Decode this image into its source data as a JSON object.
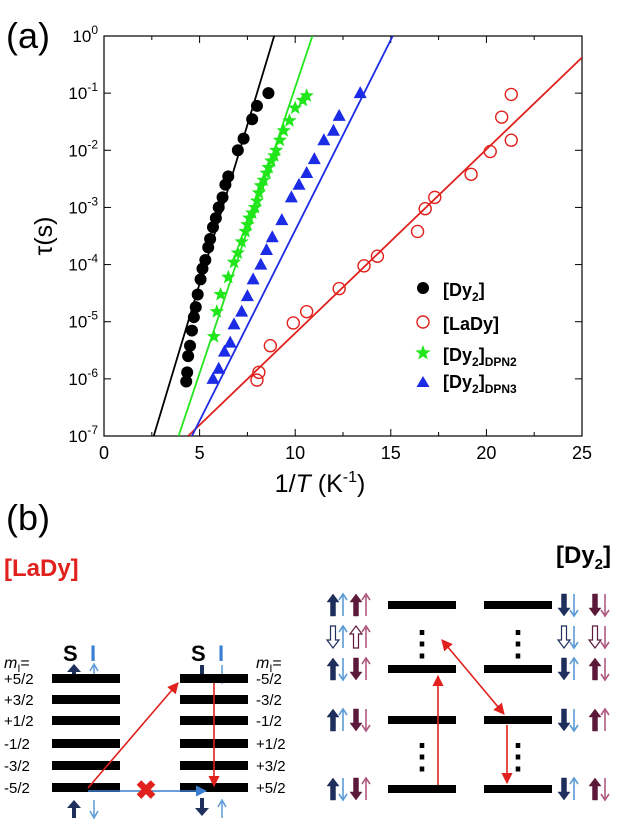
{
  "panel_a_label": "(a)",
  "panel_b_label": "(b)",
  "chart_data": {
    "type": "scatter",
    "xlabel_prefix": "1/",
    "xlabel_var": "T",
    "xlabel_unit": " (K",
    "xlabel_exp": "-1",
    "xlabel_close": ")",
    "ylabel": "τ(s)",
    "xlim": [
      0,
      25
    ],
    "ylim": [
      1e-07,
      1
    ],
    "yscale": "log",
    "x_ticks": [
      "0",
      "5",
      "10",
      "15",
      "20",
      "25"
    ],
    "y_ticks": [
      {
        "base": "10",
        "exp": "0"
      },
      {
        "base": "10",
        "exp": "-1"
      },
      {
        "base": "10",
        "exp": "-2"
      },
      {
        "base": "10",
        "exp": "-3"
      },
      {
        "base": "10",
        "exp": "-4"
      },
      {
        "base": "10",
        "exp": "-5"
      },
      {
        "base": "10",
        "exp": "-6"
      },
      {
        "base": "10",
        "exp": "-7"
      }
    ],
    "legend_position": "bottom-right",
    "series": [
      {
        "name": "[Dy2]",
        "legend_main": "[Dy",
        "legend_sub": "2",
        "legend_end": "]",
        "marker": "filled-circle",
        "color": "#000000",
        "points": [
          [
            4.3,
            9e-07
          ],
          [
            4.35,
            1.3e-06
          ],
          [
            4.4,
            2.5e-06
          ],
          [
            4.5,
            3.8e-06
          ],
          [
            4.6,
            7e-06
          ],
          [
            4.7,
            1.2e-05
          ],
          [
            4.8,
            1.8e-05
          ],
          [
            4.9,
            3e-05
          ],
          [
            5.05,
            5.5e-05
          ],
          [
            5.15,
            8.5e-05
          ],
          [
            5.3,
            0.00012
          ],
          [
            5.45,
            0.0002
          ],
          [
            5.55,
            0.00028
          ],
          [
            5.7,
            0.00045
          ],
          [
            5.85,
            0.00065
          ],
          [
            6.0,
            0.001
          ],
          [
            6.2,
            0.0015
          ],
          [
            6.35,
            0.0025
          ],
          [
            6.5,
            0.0035
          ],
          [
            7.0,
            0.01
          ],
          [
            7.3,
            0.016
          ],
          [
            7.75,
            0.035
          ],
          [
            8.0,
            0.06
          ],
          [
            8.6,
            0.1
          ]
        ],
        "fit": [
          [
            2.6,
            1e-07
          ],
          [
            8.9,
            1
          ]
        ]
      },
      {
        "name": "[LaDy]",
        "legend_main": "[LaDy]",
        "legend_sub": "",
        "legend_end": "",
        "marker": "open-circle",
        "color": "#e0211d",
        "points": [
          [
            8.0,
            9.5e-07
          ],
          [
            8.1,
            1.3e-06
          ],
          [
            8.7,
            3.8e-06
          ],
          [
            9.9,
            9.5e-06
          ],
          [
            10.6,
            1.5e-05
          ],
          [
            12.3,
            3.8e-05
          ],
          [
            13.6,
            9.5e-05
          ],
          [
            14.3,
            0.00014
          ],
          [
            16.4,
            0.00038
          ],
          [
            16.8,
            0.00095
          ],
          [
            17.3,
            0.0015
          ],
          [
            19.2,
            0.0038
          ],
          [
            20.2,
            0.0095
          ],
          [
            20.8,
            0.038
          ],
          [
            21.3,
            0.015
          ],
          [
            21.3,
            0.095
          ]
        ],
        "fit": [
          [
            4.4,
            1e-07
          ],
          [
            25,
            0.42
          ]
        ]
      },
      {
        "name": "[Dy2]DPN2",
        "legend_main": "[Dy",
        "legend_sub": "2",
        "legend_end": "]",
        "legend_sub2": "DPN2",
        "marker": "star",
        "color": "#21e61c",
        "points": [
          [
            5.75,
            5.5e-06
          ],
          [
            5.9,
            1.5e-05
          ],
          [
            6.1,
            3e-05
          ],
          [
            6.5,
            6e-05
          ],
          [
            6.8,
            0.00011
          ],
          [
            7.0,
            0.00016
          ],
          [
            7.2,
            0.00025
          ],
          [
            7.4,
            0.00038
          ],
          [
            7.5,
            0.0005
          ],
          [
            7.6,
            0.00065
          ],
          [
            7.75,
            0.0008
          ],
          [
            7.9,
            0.001
          ],
          [
            8.0,
            0.0013
          ],
          [
            8.1,
            0.0018
          ],
          [
            8.2,
            0.0024
          ],
          [
            8.35,
            0.003
          ],
          [
            8.5,
            0.004
          ],
          [
            8.6,
            0.005
          ],
          [
            8.75,
            0.0065
          ],
          [
            8.9,
            0.008
          ],
          [
            9.0,
            0.01
          ],
          [
            9.2,
            0.015
          ],
          [
            9.4,
            0.022
          ],
          [
            9.7,
            0.033
          ],
          [
            10.0,
            0.055
          ],
          [
            10.4,
            0.075
          ],
          [
            10.6,
            0.09
          ]
        ],
        "fit": [
          [
            3.9,
            1e-07
          ],
          [
            10.9,
            1
          ]
        ]
      },
      {
        "name": "[Dy2]DPN3",
        "legend_main": "[Dy",
        "legend_sub": "2",
        "legend_end": "]",
        "legend_sub2": "DPN3",
        "marker": "filled-triangle",
        "color": "#1c2be6",
        "points": [
          [
            5.7,
            1e-06
          ],
          [
            6.0,
            1.5e-06
          ],
          [
            6.3,
            3e-06
          ],
          [
            6.6,
            4.3e-06
          ],
          [
            6.8,
            9e-06
          ],
          [
            7.2,
            1.5e-05
          ],
          [
            7.5,
            2.8e-05
          ],
          [
            7.8,
            5.5e-05
          ],
          [
            8.2,
            0.0001
          ],
          [
            8.5,
            0.00018
          ],
          [
            8.8,
            0.0003
          ],
          [
            9.3,
            0.0006
          ],
          [
            9.8,
            0.0015
          ],
          [
            10.2,
            0.0025
          ],
          [
            10.6,
            0.004
          ],
          [
            11.0,
            0.007
          ],
          [
            11.5,
            0.015
          ],
          [
            12.0,
            0.022
          ],
          [
            12.3,
            0.04
          ],
          [
            13.4,
            0.1
          ]
        ],
        "fit": [
          [
            4.6,
            1e-07
          ],
          [
            15.1,
            1
          ]
        ]
      }
    ]
  },
  "diagram": {
    "left_title": "[LaDy]",
    "right_title_main": "[Dy",
    "right_title_sub": "2",
    "right_title_end": "]",
    "S": "S",
    "I": "I",
    "ml_label_m": "m",
    "ml_label_sub": "I",
    "ml_label_eq": "=",
    "left_levels": [
      "+5/2",
      "+3/2",
      "+1/2",
      "-1/2",
      "-3/2",
      "-5/2"
    ],
    "right_levels": [
      "-5/2",
      "-3/2",
      "-1/2",
      "+1/2",
      "+3/2",
      "+5/2"
    ],
    "dots": "⋮"
  }
}
